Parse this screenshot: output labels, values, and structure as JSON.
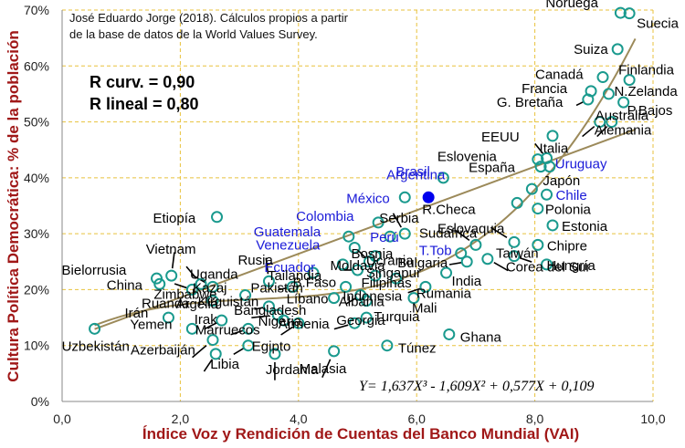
{
  "chart_data": {
    "type": "scatter",
    "title": "",
    "xlabel": "Índice Voz y Rendición de Cuentas del Banco Mundial (VAI)",
    "ylabel": "Cultura Política Democrática: % de la población",
    "xlim": [
      0,
      10
    ],
    "ylim": [
      0,
      70
    ],
    "x_ticks": [
      "0,0",
      "2,0",
      "4,0",
      "6,0",
      "8,0",
      "10,0"
    ],
    "y_ticks": [
      "0%",
      "10%",
      "20%",
      "30%",
      "40%",
      "50%",
      "60%",
      "70%"
    ],
    "grid": true,
    "colors": {
      "axis_title": "#a01818",
      "marker": "#1a9a8e",
      "latam_label": "#1a1ad8",
      "fit_line": "#9c8a5a",
      "grid": "#e8c23c"
    },
    "source_note": [
      "José Eduardo Jorge (2018). Cálculos propios a partir",
      "de la base de datos de la World Values Survey."
    ],
    "stats": {
      "r_curv": "R curv.  = 0,90",
      "r_lineal": "R lineal = 0,80"
    },
    "equation": "Y= 1,637X³ - 1,609X² + 0,577X + 0,109",
    "fits": {
      "cubic": {
        "x_range": [
          0.55,
          9.7
        ]
      },
      "linear": {
        "x_range": [
          0.55,
          9.7
        ],
        "slope": 3.9,
        "intercept": 10.8
      }
    },
    "points": [
      {
        "label": "Noruega",
        "x": 9.45,
        "y": 69.5,
        "latam": false
      },
      {
        "label": "Suecia",
        "x": 9.6,
        "y": 69.4,
        "latam": false
      },
      {
        "label": "Suiza",
        "x": 9.4,
        "y": 63.0,
        "latam": false
      },
      {
        "label": "Canadá",
        "x": 9.15,
        "y": 58.0,
        "latam": false
      },
      {
        "label": "Finlandia",
        "x": 9.6,
        "y": 57.5,
        "latam": false
      },
      {
        "label": "Francia",
        "x": 8.95,
        "y": 55.5,
        "latam": false
      },
      {
        "label": "N.Zelanda",
        "x": 9.25,
        "y": 55.0,
        "latam": false
      },
      {
        "label": "G. Bretaña",
        "x": 8.9,
        "y": 54.0,
        "latam": false
      },
      {
        "label": "P.Bajos",
        "x": 9.5,
        "y": 53.5,
        "latam": false
      },
      {
        "label": "Australia",
        "x": 9.3,
        "y": 50.0,
        "latam": false
      },
      {
        "label": "Alemania",
        "x": 9.1,
        "y": 50.0,
        "latam": false
      },
      {
        "label": "EEUU",
        "x": 8.3,
        "y": 47.5,
        "latam": false
      },
      {
        "label": "Eslovenia",
        "x": 8.05,
        "y": 43.3,
        "latam": false
      },
      {
        "label": "Italia",
        "x": 8.2,
        "y": 43.5,
        "latam": false
      },
      {
        "label": "España",
        "x": 8.1,
        "y": 42.0,
        "latam": false
      },
      {
        "label": "Uruguay",
        "x": 8.25,
        "y": 42.0,
        "latam": true
      },
      {
        "label": "Brasil",
        "x": 6.45,
        "y": 40.0,
        "latam": true
      },
      {
        "label": "Argentina",
        "x": 6.2,
        "y": 36.5,
        "latam": true,
        "filled": true
      },
      {
        "label": "Japón",
        "x": 7.95,
        "y": 38.0,
        "latam": false
      },
      {
        "label": "México",
        "x": 5.8,
        "y": 36.5,
        "latam": true
      },
      {
        "label": "Chile",
        "x": 8.2,
        "y": 37.0,
        "latam": true
      },
      {
        "label": "R.Checa",
        "x": 7.7,
        "y": 35.5,
        "latam": false
      },
      {
        "label": "Polonia",
        "x": 8.05,
        "y": 34.5,
        "latam": false
      },
      {
        "label": "Etiopía",
        "x": 2.62,
        "y": 33.0,
        "latam": false
      },
      {
        "label": "Colombia",
        "x": 5.35,
        "y": 32.0,
        "latam": true
      },
      {
        "label": "Estonia",
        "x": 8.3,
        "y": 31.5,
        "latam": false
      },
      {
        "label": "Serbia",
        "x": 5.8,
        "y": 30.0,
        "latam": false
      },
      {
        "label": "Guatemala",
        "x": 4.85,
        "y": 29.5,
        "latam": true
      },
      {
        "label": "Perú",
        "x": 5.55,
        "y": 29.5,
        "latam": true
      },
      {
        "label": "Sudáfrica",
        "x": 7.0,
        "y": 28.0,
        "latam": false
      },
      {
        "label": "Eslovaquia",
        "x": 7.65,
        "y": 28.5,
        "latam": false
      },
      {
        "label": "Venezuela",
        "x": 4.95,
        "y": 27.5,
        "latam": true
      },
      {
        "label": "Ucrania",
        "x": 5.3,
        "y": 26.0,
        "latam": false
      },
      {
        "label": "T.Tob",
        "x": 6.75,
        "y": 26.5,
        "latam": true
      },
      {
        "label": "Chipre",
        "x": 8.05,
        "y": 28.0,
        "latam": false
      },
      {
        "label": "Ecuador",
        "x": 4.75,
        "y": 24.5,
        "latam": true
      },
      {
        "label": "Bosnia",
        "x": 5.2,
        "y": 25.0,
        "latam": false
      },
      {
        "label": "Taiwán",
        "x": 7.65,
        "y": 26.0,
        "latam": false
      },
      {
        "label": "Bulgaria",
        "x": 6.85,
        "y": 25.0,
        "latam": false
      },
      {
        "label": "Hungría",
        "x": 8.2,
        "y": 24.5,
        "latam": false
      },
      {
        "label": "Vietnam",
        "x": 1.85,
        "y": 22.5,
        "latam": false
      },
      {
        "label": "Rusia",
        "x": 3.5,
        "y": 21.5,
        "latam": false
      },
      {
        "label": "Bielorrusia",
        "x": 1.6,
        "y": 22.0,
        "latam": false
      },
      {
        "label": "Uganda",
        "x": 2.35,
        "y": 21.0,
        "latam": false
      },
      {
        "label": "Kazaj",
        "x": 2.55,
        "y": 20.5,
        "latam": false
      },
      {
        "label": "Zimbabwe",
        "x": 2.2,
        "y": 20.0,
        "latam": false
      },
      {
        "label": "China",
        "x": 1.65,
        "y": 21.0,
        "latam": false
      },
      {
        "label": "Moldavia",
        "x": 5.0,
        "y": 23.5,
        "latam": false
      },
      {
        "label": "Singapur",
        "x": 5.3,
        "y": 22.5,
        "latam": false
      },
      {
        "label": "Filipinas",
        "x": 5.65,
        "y": 22.0,
        "latam": false
      },
      {
        "label": "Tailandia",
        "x": 4.25,
        "y": 23.0,
        "latam": false
      },
      {
        "label": "India",
        "x": 6.5,
        "y": 23.0,
        "latam": false
      },
      {
        "label": "Corea del Sur",
        "x": 7.2,
        "y": 25.5,
        "latam": false
      },
      {
        "label": "Pakistán",
        "x": 3.9,
        "y": 20.5,
        "latam": false
      },
      {
        "label": "B.Faso",
        "x": 4.8,
        "y": 20.5,
        "latam": false
      },
      {
        "label": "Rumania",
        "x": 6.15,
        "y": 20.5,
        "latam": false
      },
      {
        "label": "Albania",
        "x": 5.05,
        "y": 19.0,
        "latam": false
      },
      {
        "label": "Kirguistán",
        "x": 3.1,
        "y": 19.0,
        "latam": false
      },
      {
        "label": "Líbano",
        "x": 4.6,
        "y": 18.5,
        "latam": false
      },
      {
        "label": "Indonesia",
        "x": 5.15,
        "y": 18.0,
        "latam": false
      },
      {
        "label": "Mali",
        "x": 5.95,
        "y": 18.5,
        "latam": false
      },
      {
        "label": "Ruanda",
        "x": 2.55,
        "y": 18.0,
        "latam": false
      },
      {
        "label": "Argelia",
        "x": 3.5,
        "y": 17.0,
        "latam": false
      },
      {
        "label": "Bangladesh",
        "x": 3.65,
        "y": 15.5,
        "latam": false
      },
      {
        "label": "Irán",
        "x": 1.8,
        "y": 15.0,
        "latam": false
      },
      {
        "label": "Irak",
        "x": 2.7,
        "y": 14.5,
        "latam": false
      },
      {
        "label": "Nigeria",
        "x": 3.75,
        "y": 14.5,
        "latam": false
      },
      {
        "label": "Turquia",
        "x": 5.15,
        "y": 15.0,
        "latam": false
      },
      {
        "label": "Armenia",
        "x": 4.0,
        "y": 14.0,
        "latam": false
      },
      {
        "label": "Georgia",
        "x": 4.95,
        "y": 14.0,
        "latam": false
      },
      {
        "label": "Yemen",
        "x": 2.2,
        "y": 13.0,
        "latam": false
      },
      {
        "label": "Marruecos",
        "x": 3.15,
        "y": 13.0,
        "latam": false
      },
      {
        "label": "Uzbekistán",
        "x": 0.55,
        "y": 13.0,
        "latam": false
      },
      {
        "label": "Ghana",
        "x": 6.55,
        "y": 12.0,
        "latam": false
      },
      {
        "label": "Azerbaiján",
        "x": 2.55,
        "y": 11.0,
        "latam": false
      },
      {
        "label": "Egipto",
        "x": 3.15,
        "y": 10.0,
        "latam": false
      },
      {
        "label": "Túnez",
        "x": 5.5,
        "y": 10.0,
        "latam": false
      },
      {
        "label": "Libia",
        "x": 2.6,
        "y": 8.5,
        "latam": false
      },
      {
        "label": "Malasia",
        "x": 4.6,
        "y": 9.0,
        "latam": false
      },
      {
        "label": "Jordania",
        "x": 3.6,
        "y": 8.5,
        "latam": false
      }
    ]
  }
}
